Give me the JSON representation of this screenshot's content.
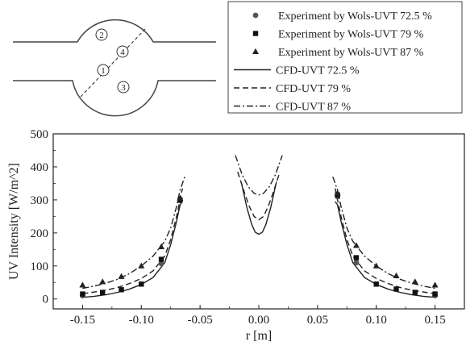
{
  "schematic": {
    "markers": [
      "1",
      "2",
      "3",
      "4"
    ]
  },
  "legend": {
    "entries": [
      {
        "label": "Experiment by Wols-UVT 72.5 %",
        "kind": "marker",
        "marker": "circle"
      },
      {
        "label": "Experiment by Wols-UVT 79 %",
        "kind": "marker",
        "marker": "square"
      },
      {
        "label": "Experiment by Wols-UVT 87 %",
        "kind": "marker",
        "marker": "triangle"
      },
      {
        "label": "CFD-UVT 72.5 %",
        "kind": "line",
        "dash": "solid"
      },
      {
        "label": "CFD-UVT 79 %",
        "kind": "line",
        "dash": "dashed"
      },
      {
        "label": "CFD-UVT 87 %",
        "kind": "line",
        "dash": "dashdot"
      }
    ]
  },
  "chart_data": {
    "type": "line",
    "xlabel": "r [m]",
    "ylabel": "UV Intensity [W/m^2]",
    "xlim": [
      -0.175,
      0.175
    ],
    "ylim": [
      -30,
      500
    ],
    "xticks": [
      "-0.15",
      "-0.10",
      "-0.05",
      "0.00",
      "0.05",
      "0.10",
      "0.15"
    ],
    "xtick_values": [
      -0.15,
      -0.1,
      -0.05,
      0.0,
      0.05,
      0.1,
      0.15
    ],
    "yticks": [
      "0",
      "100",
      "200",
      "300",
      "400",
      "500"
    ],
    "ytick_values": [
      0,
      100,
      200,
      300,
      400,
      500
    ],
    "grid": false,
    "series": [
      {
        "name": "CFD-UVT 72.5 %",
        "kind": "line",
        "dash": "solid",
        "segments": [
          [
            [
              -0.15,
              5
            ],
            [
              -0.14,
              8
            ],
            [
              -0.13,
              13
            ],
            [
              -0.12,
              20
            ],
            [
              -0.11,
              30
            ],
            [
              -0.1,
              44
            ],
            [
              -0.09,
              65
            ],
            [
              -0.08,
              110
            ],
            [
              -0.075,
              165
            ],
            [
              -0.07,
              235
            ],
            [
              -0.067,
              285
            ],
            [
              -0.065,
              295
            ]
          ],
          [
            [
              -0.015,
              355
            ],
            [
              -0.01,
              275
            ],
            [
              -0.006,
              225
            ],
            [
              -0.003,
              202
            ],
            [
              0.0,
              196
            ],
            [
              0.003,
              202
            ],
            [
              0.006,
              225
            ],
            [
              0.01,
              275
            ],
            [
              0.015,
              355
            ]
          ],
          [
            [
              0.065,
              295
            ],
            [
              0.067,
              285
            ],
            [
              0.07,
              235
            ],
            [
              0.075,
              165
            ],
            [
              0.08,
              110
            ],
            [
              0.09,
              65
            ],
            [
              0.1,
              44
            ],
            [
              0.11,
              30
            ],
            [
              0.12,
              20
            ],
            [
              0.13,
              13
            ],
            [
              0.14,
              8
            ],
            [
              0.15,
              5
            ]
          ]
        ]
      },
      {
        "name": "CFD-UVT 79 %",
        "kind": "line",
        "dash": "dashed",
        "segments": [
          [
            [
              -0.15,
              16
            ],
            [
              -0.14,
              21
            ],
            [
              -0.13,
              27
            ],
            [
              -0.12,
              35
            ],
            [
              -0.11,
              47
            ],
            [
              -0.1,
              62
            ],
            [
              -0.09,
              85
            ],
            [
              -0.08,
              130
            ],
            [
              -0.075,
              180
            ],
            [
              -0.07,
              250
            ],
            [
              -0.067,
              300
            ],
            [
              -0.065,
              335
            ]
          ],
          [
            [
              -0.018,
              385
            ],
            [
              -0.012,
              320
            ],
            [
              -0.008,
              280
            ],
            [
              -0.004,
              250
            ],
            [
              0.0,
              240
            ],
            [
              0.004,
              250
            ],
            [
              0.008,
              280
            ],
            [
              0.012,
              320
            ],
            [
              0.018,
              385
            ]
          ],
          [
            [
              0.065,
              335
            ],
            [
              0.067,
              300
            ],
            [
              0.07,
              250
            ],
            [
              0.075,
              180
            ],
            [
              0.08,
              130
            ],
            [
              0.09,
              85
            ],
            [
              0.1,
              62
            ],
            [
              0.11,
              47
            ],
            [
              0.12,
              35
            ],
            [
              0.13,
              27
            ],
            [
              0.14,
              21
            ],
            [
              0.15,
              16
            ]
          ]
        ]
      },
      {
        "name": "CFD-UVT 87 %",
        "kind": "line",
        "dash": "dashdot",
        "segments": [
          [
            [
              -0.15,
              32
            ],
            [
              -0.14,
              39
            ],
            [
              -0.13,
              48
            ],
            [
              -0.12,
              60
            ],
            [
              -0.11,
              77
            ],
            [
              -0.1,
              100
            ],
            [
              -0.09,
              130
            ],
            [
              -0.08,
              175
            ],
            [
              -0.075,
              215
            ],
            [
              -0.07,
              280
            ],
            [
              -0.067,
              330
            ],
            [
              -0.063,
              370
            ]
          ],
          [
            [
              -0.02,
              435
            ],
            [
              -0.014,
              375
            ],
            [
              -0.009,
              340
            ],
            [
              -0.004,
              320
            ],
            [
              0.0,
              315
            ],
            [
              0.004,
              320
            ],
            [
              0.009,
              340
            ],
            [
              0.014,
              375
            ],
            [
              0.02,
              435
            ]
          ],
          [
            [
              0.063,
              370
            ],
            [
              0.067,
              330
            ],
            [
              0.07,
              280
            ],
            [
              0.075,
              215
            ],
            [
              0.08,
              175
            ],
            [
              0.09,
              130
            ],
            [
              0.1,
              100
            ],
            [
              0.11,
              77
            ],
            [
              0.12,
              60
            ],
            [
              0.13,
              48
            ],
            [
              0.14,
              39
            ],
            [
              0.15,
              32
            ]
          ]
        ]
      },
      {
        "name": "Experiment by Wols-UVT 72.5 %",
        "kind": "marker",
        "marker": "circle",
        "points": [
          [
            -0.15,
            10
          ],
          [
            -0.083,
            107
          ],
          [
            -0.067,
            298
          ],
          [
            0.067,
            310
          ],
          [
            0.083,
            110
          ],
          [
            0.15,
            10
          ]
        ]
      },
      {
        "name": "Experiment by Wols-UVT 79 %",
        "kind": "marker",
        "marker": "square",
        "points": [
          [
            -0.15,
            15
          ],
          [
            -0.133,
            20
          ],
          [
            -0.117,
            28
          ],
          [
            -0.1,
            45
          ],
          [
            -0.083,
            120
          ],
          [
            -0.067,
            300
          ],
          [
            0.067,
            315
          ],
          [
            0.083,
            125
          ],
          [
            0.1,
            45
          ],
          [
            0.117,
            30
          ],
          [
            0.133,
            20
          ],
          [
            0.15,
            15
          ]
        ]
      },
      {
        "name": "Experiment by Wols-UVT 87 %",
        "kind": "marker",
        "marker": "triangle",
        "points": [
          [
            -0.15,
            42
          ],
          [
            -0.133,
            52
          ],
          [
            -0.117,
            68
          ],
          [
            -0.1,
            100
          ],
          [
            -0.083,
            158
          ],
          [
            -0.067,
            305
          ],
          [
            0.067,
            320
          ],
          [
            0.083,
            162
          ],
          [
            0.1,
            100
          ],
          [
            0.117,
            70
          ],
          [
            0.133,
            52
          ],
          [
            0.15,
            42
          ]
        ]
      }
    ]
  }
}
